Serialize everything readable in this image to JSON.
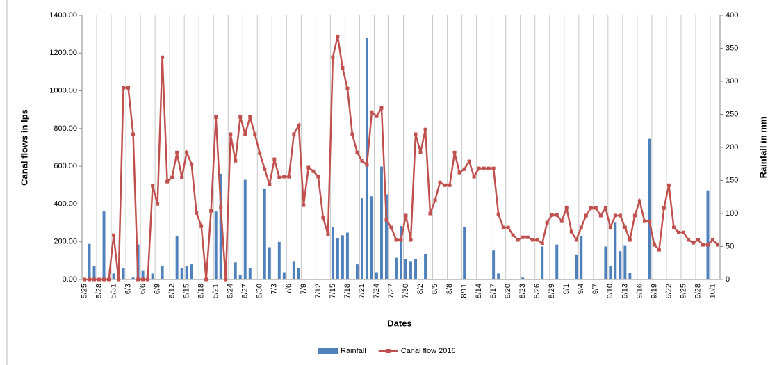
{
  "chart_data": {
    "type": "combo",
    "x_label": "Dates",
    "y_label": "Canal flows in lps",
    "y2_label": "Rainfall in mm",
    "categories": [
      "5/25",
      null,
      null,
      "5/28",
      null,
      null,
      "5/31",
      null,
      null,
      "6/3",
      null,
      null,
      "6/6",
      null,
      null,
      "6/9",
      null,
      null,
      "6/12",
      null,
      null,
      "6/15",
      null,
      null,
      "6/18",
      null,
      null,
      "6/21",
      null,
      null,
      "6/24",
      null,
      null,
      "6/27",
      null,
      null,
      "6/30",
      null,
      null,
      "7/3",
      null,
      null,
      "7/6",
      null,
      null,
      "7/9",
      null,
      null,
      "7/12",
      null,
      null,
      "7/15",
      null,
      null,
      "7/18",
      null,
      null,
      "7/21",
      null,
      null,
      "7/24",
      null,
      null,
      "7/27",
      null,
      null,
      "7/30",
      null,
      null,
      "8/2",
      null,
      null,
      "8/5",
      null,
      null,
      "8/8",
      null,
      null,
      "8/11",
      null,
      null,
      "8/14",
      null,
      null,
      "8/17",
      null,
      null,
      "8/20",
      null,
      null,
      "8/23",
      null,
      null,
      "8/26",
      null,
      null,
      "8/29",
      null,
      null,
      "9/1",
      null,
      null,
      "9/4",
      null,
      null,
      "9/7",
      null,
      null,
      "9/10",
      null,
      null,
      "9/13",
      null,
      null,
      "9/16",
      null,
      null,
      "9/19",
      null,
      null,
      "9/22",
      null,
      null,
      "9/25",
      null,
      null,
      "9/28",
      null,
      null,
      "10/1",
      null
    ],
    "series": [
      {
        "name": "Rainfall",
        "type": "bar",
        "axis": "y2",
        "color": "#4f81bd",
        "values": [
          0,
          54,
          20,
          0,
          103,
          0,
          9,
          3,
          17,
          0,
          3,
          53,
          13,
          7,
          9,
          0,
          20,
          0,
          0,
          66,
          17,
          20,
          23,
          0,
          0,
          0,
          0,
          103,
          160,
          0,
          0,
          26,
          7,
          151,
          17,
          0,
          0,
          137,
          49,
          0,
          57,
          11,
          0,
          27,
          17,
          0,
          0,
          0,
          0,
          0,
          0,
          80,
          63,
          67,
          71,
          0,
          23,
          123,
          366,
          126,
          11,
          171,
          129,
          0,
          33,
          81,
          31,
          27,
          31,
          0,
          39,
          0,
          0,
          0,
          0,
          0,
          0,
          0,
          79,
          0,
          0,
          0,
          0,
          0,
          44,
          9,
          0,
          0,
          0,
          0,
          3,
          0,
          0,
          0,
          50,
          0,
          0,
          53,
          0,
          0,
          0,
          37,
          66,
          0,
          0,
          0,
          0,
          50,
          21,
          86,
          43,
          51,
          10,
          0,
          0,
          0,
          213,
          0,
          0,
          0,
          0,
          0,
          0,
          0,
          0,
          0,
          0,
          0,
          134,
          0,
          0
        ]
      },
      {
        "name": "Canal flow 2016",
        "type": "line",
        "color": "#c0504d",
        "values": [
          0,
          0,
          0,
          0,
          0,
          0,
          235,
          0,
          1016,
          1016,
          770,
          0,
          0,
          0,
          497,
          401,
          1178,
          519,
          541,
          673,
          541,
          673,
          611,
          353,
          283,
          0,
          364,
          861,
          383,
          0,
          770,
          629,
          861,
          770,
          861,
          770,
          670,
          585,
          504,
          637,
          541,
          545,
          545,
          770,
          817,
          394,
          593,
          574,
          545,
          328,
          239,
          1178,
          1288,
          1122,
          1012,
          770,
          673,
          629,
          607,
          887,
          865,
          909,
          316,
          276,
          210,
          210,
          339,
          210,
          770,
          673,
          795,
          350,
          420,
          515,
          500,
          500,
          673,
          567,
          585,
          626,
          545,
          589,
          589,
          589,
          589,
          346,
          276,
          276,
          235,
          210,
          224,
          224,
          210,
          210,
          191,
          302,
          342,
          342,
          309,
          379,
          254,
          210,
          276,
          339,
          379,
          379,
          339,
          379,
          276,
          339,
          339,
          276,
          210,
          339,
          416,
          309,
          309,
          184,
          158,
          379,
          500,
          276,
          250,
          250,
          210,
          195,
          210,
          184,
          184,
          210,
          184
        ]
      }
    ],
    "ylim": [
      0,
      1400
    ],
    "yticks": [
      {
        "value": 0,
        "label": "0.00"
      },
      {
        "value": 200,
        "label": "200.00"
      },
      {
        "value": 400,
        "label": "400.00"
      },
      {
        "value": 600,
        "label": "600.00"
      },
      {
        "value": 800,
        "label": "800.00"
      },
      {
        "value": 1000,
        "label": "1000.00"
      },
      {
        "value": 1200,
        "label": "1200.00"
      },
      {
        "value": 1400,
        "label": "1400.00"
      }
    ],
    "y2lim": [
      0,
      400
    ],
    "y2ticks": [
      0,
      50,
      100,
      150,
      200,
      250,
      300,
      350,
      400
    ],
    "grid": "x",
    "legend": "bottom"
  }
}
